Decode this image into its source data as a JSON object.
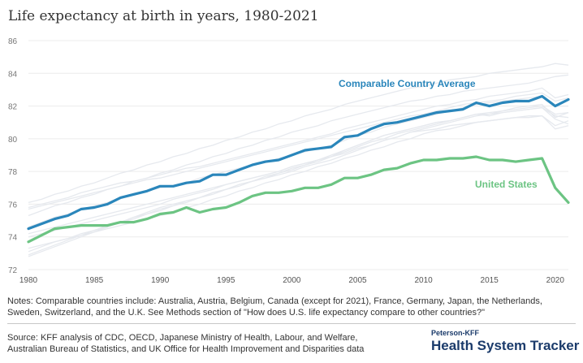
{
  "title": "Life expectancy at birth in years, 1980-2021",
  "notes": "Notes: Comparable countries include: Australia, Austria, Belgium, Canada (except for 2021), France, Germany, Japan, the Netherlands, Sweden, Switzerland, and the U.K. See Methods section of \"How does U.S. life expectancy compare to other countries?\"",
  "source": "Source: KFF analysis of CDC, OECD, Japanese Ministry of Health, Labour, and Welfare, Australian Bureau of Statistics, and UK Office for Health Improvement and Disparities data",
  "brand": {
    "top": "Peterson-KFF",
    "name": "Health System Tracker"
  },
  "colors": {
    "comparable": "#2a86bb",
    "us": "#6cc483",
    "background_lines": "#e6e9ee",
    "grid": "#ececec",
    "text": "#333333",
    "axis_text": "#555555",
    "brand": "#1b3b6b"
  },
  "chart_data": {
    "type": "line",
    "title": "Life expectancy at birth in years, 1980-2021",
    "x": [
      1980,
      1981,
      1982,
      1983,
      1984,
      1985,
      1986,
      1987,
      1988,
      1989,
      1990,
      1991,
      1992,
      1993,
      1994,
      1995,
      1996,
      1997,
      1998,
      1999,
      2000,
      2001,
      2002,
      2003,
      2004,
      2005,
      2006,
      2007,
      2008,
      2009,
      2010,
      2011,
      2012,
      2013,
      2014,
      2015,
      2016,
      2017,
      2018,
      2019,
      2020,
      2021
    ],
    "xlim": [
      1980,
      2021
    ],
    "ylim": [
      72,
      86
    ],
    "x_ticks": [
      1980,
      1985,
      1990,
      1995,
      2000,
      2005,
      2010,
      2015,
      2020
    ],
    "y_ticks": [
      72,
      74,
      76,
      78,
      80,
      82,
      84,
      86
    ],
    "grid": true,
    "series": [
      {
        "name": "Comparable Country Average",
        "color": "#2a86bb",
        "values": [
          74.5,
          74.8,
          75.1,
          75.3,
          75.7,
          75.8,
          76.0,
          76.4,
          76.6,
          76.8,
          77.1,
          77.1,
          77.3,
          77.4,
          77.8,
          77.8,
          78.1,
          78.4,
          78.6,
          78.7,
          79.0,
          79.3,
          79.4,
          79.5,
          80.1,
          80.2,
          80.6,
          80.9,
          81.0,
          81.2,
          81.4,
          81.6,
          81.7,
          81.8,
          82.2,
          82.0,
          82.2,
          82.3,
          82.3,
          82.6,
          82.0,
          82.4
        ]
      },
      {
        "name": "United States",
        "color": "#6cc483",
        "values": [
          73.7,
          74.1,
          74.5,
          74.6,
          74.7,
          74.7,
          74.7,
          74.9,
          74.9,
          75.1,
          75.4,
          75.5,
          75.8,
          75.5,
          75.7,
          75.8,
          76.1,
          76.5,
          76.7,
          76.7,
          76.8,
          77.0,
          77.0,
          77.2,
          77.6,
          77.6,
          77.8,
          78.1,
          78.2,
          78.5,
          78.7,
          78.7,
          78.8,
          78.8,
          78.9,
          78.7,
          78.7,
          78.6,
          78.7,
          78.8,
          77.0,
          76.1
        ]
      }
    ],
    "background_series": [
      {
        "values": [
          74.6,
          74.9,
          75.2,
          75.4,
          75.7,
          75.9,
          76.1,
          76.4,
          76.6,
          76.8,
          77.0,
          77.1,
          77.3,
          77.6,
          77.8,
          78.0,
          78.2,
          78.4,
          78.6,
          78.8,
          79.0,
          79.2,
          79.4,
          79.6,
          79.9,
          80.2,
          80.4,
          80.7,
          80.9,
          81.1,
          81.3,
          81.5,
          81.7,
          81.9,
          82.1,
          82.2,
          82.3,
          82.4,
          82.5,
          82.6,
          82.0,
          82.0
        ]
      },
      {
        "values": [
          76.1,
          76.3,
          76.6,
          76.8,
          77.1,
          77.3,
          77.6,
          77.9,
          78.1,
          78.4,
          78.6,
          78.9,
          79.1,
          79.4,
          79.6,
          79.9,
          80.1,
          80.4,
          80.6,
          80.9,
          81.1,
          81.4,
          81.6,
          81.8,
          82.1,
          82.3,
          82.5,
          82.7,
          82.9,
          83.1,
          83.2,
          83.4,
          83.6,
          83.7,
          83.8,
          84.0,
          84.1,
          84.2,
          84.3,
          84.4,
          84.6,
          84.5
        ]
      },
      {
        "values": [
          75.3,
          75.6,
          75.9,
          76.1,
          76.4,
          76.6,
          76.9,
          77.1,
          77.4,
          77.6,
          77.9,
          78.1,
          78.4,
          78.6,
          78.9,
          79.1,
          79.4,
          79.6,
          79.9,
          80.1,
          80.4,
          80.6,
          80.8,
          81.1,
          81.3,
          81.5,
          81.7,
          81.9,
          82.1,
          82.3,
          82.4,
          82.6,
          82.7,
          82.9,
          83.0,
          83.1,
          83.2,
          83.3,
          83.4,
          83.6,
          83.8,
          83.9
        ]
      },
      {
        "values": [
          73.1,
          73.4,
          73.7,
          73.9,
          74.2,
          74.4,
          74.7,
          74.9,
          75.2,
          75.4,
          75.7,
          75.9,
          76.2,
          76.4,
          76.7,
          76.9,
          77.2,
          77.4,
          77.7,
          77.9,
          78.2,
          78.4,
          78.7,
          78.9,
          79.3,
          79.6,
          79.9,
          80.2,
          80.4,
          80.6,
          80.8,
          81.0,
          81.1,
          81.3,
          81.5,
          81.4,
          81.6,
          81.7,
          81.8,
          81.9,
          81.2,
          80.9
        ]
      },
      {
        "values": [
          74.2,
          74.4,
          74.6,
          74.8,
          75.0,
          75.2,
          75.4,
          75.6,
          75.8,
          76.0,
          76.2,
          76.4,
          76.6,
          76.8,
          77.0,
          77.2,
          77.4,
          77.6,
          77.8,
          78.0,
          78.3,
          78.5,
          78.7,
          78.9,
          79.2,
          79.5,
          79.8,
          80.0,
          80.3,
          80.5,
          80.7,
          80.9,
          81.1,
          81.3,
          81.5,
          81.5,
          81.7,
          81.8,
          81.9,
          82.0,
          81.5,
          81.6
        ]
      },
      {
        "values": [
          72.8,
          73.1,
          73.4,
          73.7,
          74.0,
          74.3,
          74.6,
          74.9,
          75.2,
          75.5,
          75.8,
          76.0,
          76.2,
          76.4,
          76.7,
          76.9,
          77.2,
          77.4,
          77.6,
          77.8,
          78.0,
          78.3,
          78.5,
          78.7,
          79.0,
          79.3,
          79.6,
          79.9,
          80.1,
          80.4,
          80.6,
          80.8,
          81.0,
          81.2,
          81.4,
          81.5,
          81.6,
          81.7,
          81.8,
          81.9,
          81.4,
          81.3
        ]
      },
      {
        "values": [
          75.8,
          76.0,
          76.2,
          76.4,
          76.7,
          76.9,
          77.1,
          77.3,
          77.4,
          77.6,
          77.8,
          78.0,
          78.2,
          78.3,
          78.5,
          78.7,
          78.9,
          79.1,
          79.3,
          79.5,
          79.7,
          79.9,
          80.1,
          80.3,
          80.6,
          80.8,
          81.0,
          81.2,
          81.4,
          81.6,
          81.8,
          82.0,
          82.1,
          82.3,
          82.4,
          82.6,
          82.7,
          82.8,
          82.9,
          83.1,
          82.5,
          82.7
        ]
      },
      {
        "values": [
          75.7,
          75.9,
          76.1,
          76.3,
          76.5,
          76.7,
          76.9,
          77.1,
          77.3,
          77.5,
          77.6,
          77.8,
          78.0,
          78.2,
          78.4,
          78.6,
          78.8,
          79.0,
          79.2,
          79.4,
          79.6,
          79.8,
          80.0,
          80.2,
          80.4,
          80.6,
          80.8,
          81.0,
          81.2,
          81.4,
          81.5,
          81.7,
          81.9,
          82.1,
          82.2,
          82.3,
          82.4,
          82.6,
          82.7,
          82.8,
          82.3,
          82.5
        ]
      },
      {
        "values": [
          74.0,
          74.2,
          74.4,
          74.6,
          74.8,
          75.0,
          75.2,
          75.4,
          75.6,
          75.8,
          76.0,
          76.3,
          76.5,
          76.7,
          76.9,
          77.2,
          77.4,
          77.6,
          77.8,
          78.0,
          78.3,
          78.5,
          78.7,
          79.0,
          79.3,
          79.6,
          79.9,
          80.2,
          80.4,
          80.6,
          80.8,
          81.0,
          81.1,
          81.3,
          81.5,
          81.6,
          81.7,
          81.9,
          82.0,
          82.1,
          81.3,
          81.6
        ]
      },
      {
        "values": [
          73.3,
          73.5,
          73.7,
          73.9,
          74.1,
          74.3,
          74.5,
          74.7,
          74.9,
          75.1,
          75.3,
          75.5,
          75.8,
          76.0,
          76.3,
          76.5,
          76.8,
          77.0,
          77.3,
          77.5,
          77.8,
          78.0,
          78.3,
          78.5,
          78.8,
          79.0,
          79.3,
          79.5,
          79.8,
          80.0,
          80.3,
          80.5,
          80.6,
          80.8,
          81.0,
          81.1,
          81.2,
          81.3,
          81.4,
          81.4,
          80.8,
          81.1
        ]
      },
      {
        "values": [
          72.9,
          73.2,
          73.5,
          73.8,
          74.1,
          74.4,
          74.6,
          74.9,
          75.1,
          75.4,
          75.6,
          75.9,
          76.1,
          76.4,
          76.6,
          76.9,
          77.1,
          77.4,
          77.6,
          77.9,
          78.1,
          78.4,
          78.6,
          78.9,
          79.1,
          79.4,
          79.6,
          79.9,
          80.1,
          80.4,
          80.5,
          80.6,
          80.8,
          80.9,
          81.0,
          81.1,
          81.2,
          81.3,
          81.3,
          81.4,
          80.6,
          80.8
        ]
      }
    ]
  }
}
